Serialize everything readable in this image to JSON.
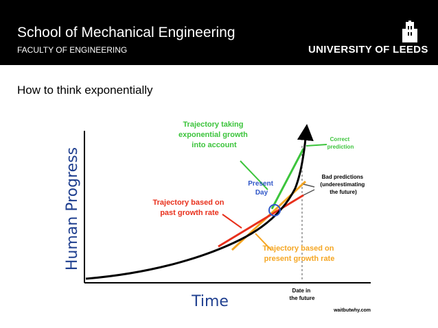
{
  "header": {
    "title": "School of Mechanical Engineering",
    "subtitle": "FACULTY OF ENGINEERING",
    "logo_text": "UNIVERSITY OF LEEDS"
  },
  "slide": {
    "title": "How to think exponentially"
  },
  "figure": {
    "y_axis_label": "Human Progress",
    "x_axis_label": "Time",
    "label_exponential": [
      "Trajectory taking",
      "exponential growth",
      "into account"
    ],
    "label_present_day": [
      "Present",
      "Day"
    ],
    "label_past_growth": [
      "Trajectory based on",
      "past growth rate"
    ],
    "label_present_growth": [
      "Trajectory based on",
      "present growth rate"
    ],
    "label_correct": [
      "Correct",
      "prediction"
    ],
    "label_bad": [
      "Bad predictions",
      "(underestimating",
      "the future)"
    ],
    "label_date": [
      "Date in",
      "the future"
    ],
    "credit": "waitbutwhy.com"
  },
  "colors": {
    "header_bg": "#000000",
    "green": "#3cc43c",
    "red": "#e8301c",
    "orange": "#f5a623",
    "blue": "#2f56c8",
    "axis_blue": "#1f3f8f"
  }
}
